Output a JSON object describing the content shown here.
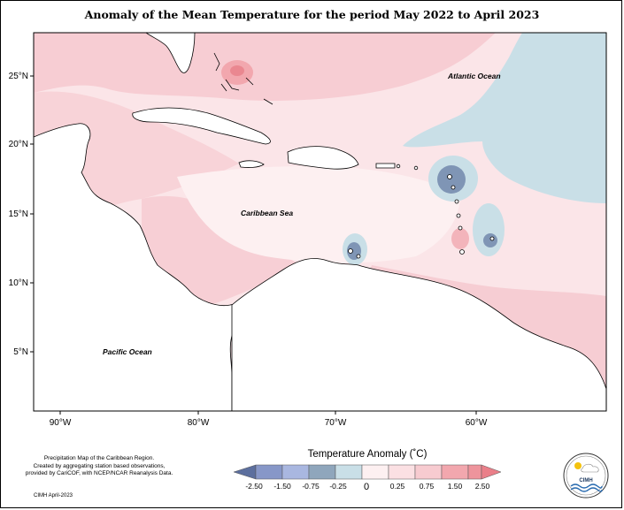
{
  "title": "Anomaly of the Mean Temperature for the period May 2022 to April 2023",
  "latitude_labels": [
    "25°N",
    "20°N",
    "15°N",
    "10°N",
    "5°N"
  ],
  "longitude_labels": [
    "90°W",
    "80°W",
    "70°W",
    "60°W"
  ],
  "region_labels": {
    "atlantic": "Atlantic Ocean",
    "caribbean": "Caribbean Sea",
    "pacific": "Pacific Ocean"
  },
  "legend": {
    "title": "Temperature Anomaly (˚C)",
    "labels": [
      "-2.50",
      "-1.50",
      "-0.75",
      "-0.25",
      "0",
      "0.25",
      "0.75",
      "1.50",
      "2.50"
    ],
    "colors": [
      "#5c6f9e",
      "#8797c8",
      "#a9b7e0",
      "#8fa6bc",
      "#c9dfe7",
      "#fbe8ea",
      "#f7cbd0",
      "#f2a7ae",
      "#ea7f89"
    ]
  },
  "credit_lines": [
    "Precipitation Map of the Caribbean Region.",
    "Created by aggregating station based observations,",
    "provided by CariCOF, with NCEP/NCAR Reanalysis Data."
  ],
  "date_stamp": "CIMH April-2023",
  "logo_text": "CIMH",
  "chart_data": {
    "type": "heatmap",
    "title": "Anomaly of the Mean Temperature for the period May 2022 to April 2023",
    "x_ticks": [
      "90°W",
      "80°W",
      "70°W",
      "60°W"
    ],
    "y_ticks": [
      "25°N",
      "20°N",
      "15°N",
      "10°N",
      "5°N"
    ],
    "xlim": [
      -92,
      -52
    ],
    "ylim": [
      1,
      28
    ],
    "color_scale": {
      "breaks": [
        -2.5,
        -1.5,
        -0.75,
        -0.25,
        0,
        0.25,
        0.75,
        1.5,
        2.5
      ],
      "colors": [
        "#5c6f9e",
        "#8797c8",
        "#a9b7e0",
        "#8fa6bc",
        "#c9dfe7",
        "#fbe8ea",
        "#f7cbd0",
        "#f2a7ae",
        "#ea7f89"
      ]
    }
  }
}
